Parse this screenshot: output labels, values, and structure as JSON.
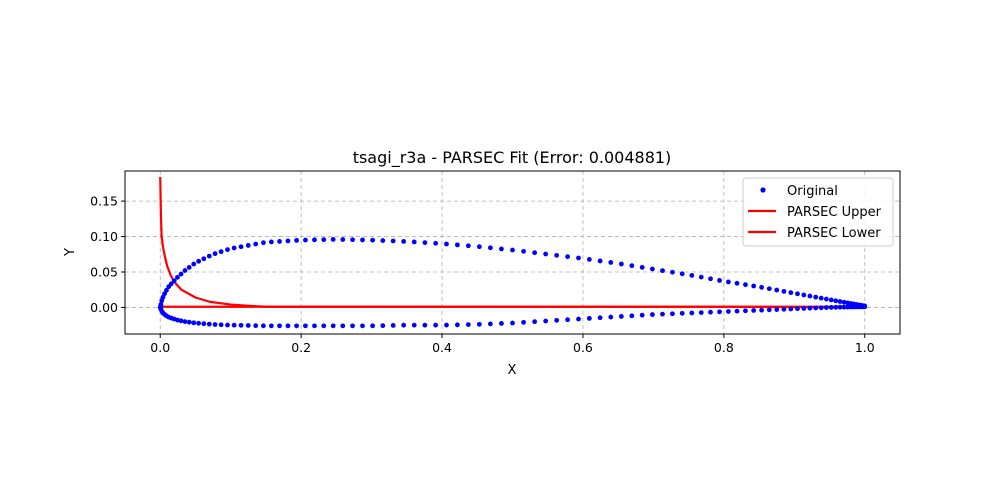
{
  "chart_data": {
    "type": "scatter",
    "title": "tsagi_r3a - PARSEC Fit (Error: 0.004881)",
    "xlabel": "X",
    "ylabel": "Y",
    "xlim": [
      -0.05,
      1.05
    ],
    "ylim": [
      -0.0375,
      0.1925
    ],
    "xticks": [
      0.0,
      0.2,
      0.4,
      0.6,
      0.8,
      1.0
    ],
    "xtick_labels": [
      "0.0",
      "0.2",
      "0.4",
      "0.6",
      "0.8",
      "1.0"
    ],
    "yticks": [
      0.0,
      0.05,
      0.1,
      0.15
    ],
    "ytick_labels": [
      "0.00",
      "0.05",
      "0.10",
      "0.15"
    ],
    "grid": true,
    "legend_position": "top-right",
    "series": [
      {
        "name": "Original",
        "kind": "scatter",
        "color": "#0000ff",
        "upper": {
          "x": [
            1.0,
            0.95,
            0.9,
            0.85,
            0.8,
            0.75,
            0.7,
            0.65,
            0.6,
            0.55,
            0.5,
            0.45,
            0.4,
            0.35,
            0.3,
            0.25,
            0.2,
            0.15,
            0.1,
            0.075,
            0.05,
            0.035,
            0.025,
            0.0125,
            0.0075,
            0.005,
            0.0025,
            0.0
          ],
          "y": [
            0.002,
            0.011,
            0.02,
            0.029,
            0.037,
            0.046,
            0.054,
            0.062,
            0.069,
            0.075,
            0.081,
            0.086,
            0.09,
            0.093,
            0.095,
            0.096,
            0.095,
            0.092,
            0.083,
            0.075,
            0.063,
            0.052,
            0.043,
            0.03,
            0.022,
            0.017,
            0.011,
            0.0
          ]
        },
        "lower": {
          "x": [
            0.0,
            0.0025,
            0.005,
            0.0075,
            0.0125,
            0.025,
            0.035,
            0.05,
            0.075,
            0.1,
            0.15,
            0.2,
            0.25,
            0.3,
            0.35,
            0.4,
            0.45,
            0.5,
            0.55,
            0.6,
            0.65,
            0.7,
            0.75,
            0.8,
            0.85,
            0.9,
            0.95,
            1.0
          ],
          "y": [
            0.0,
            -0.006,
            -0.009,
            -0.011,
            -0.014,
            -0.018,
            -0.02,
            -0.022,
            -0.024,
            -0.025,
            -0.026,
            -0.026,
            -0.026,
            -0.026,
            -0.025,
            -0.025,
            -0.024,
            -0.022,
            -0.019,
            -0.016,
            -0.013,
            -0.01,
            -0.008,
            -0.006,
            -0.004,
            -0.002,
            0.0,
            0.001
          ]
        }
      },
      {
        "name": "PARSEC Upper",
        "kind": "line",
        "color": "#ff0000",
        "x": [
          0.0,
          0.001,
          0.002,
          0.004,
          0.007,
          0.01,
          0.015,
          0.02,
          0.03,
          0.05,
          0.07,
          0.1,
          0.13,
          0.15,
          0.2,
          0.3,
          0.5,
          0.7,
          0.9,
          1.0
        ],
        "y": [
          0.184,
          0.13,
          0.1,
          0.085,
          0.07,
          0.058,
          0.045,
          0.036,
          0.025,
          0.014,
          0.008,
          0.004,
          0.002,
          0.001,
          0.001,
          0.001,
          0.001,
          0.001,
          0.001,
          0.001
        ]
      },
      {
        "name": "PARSEC Lower",
        "kind": "line",
        "color": "#ff0000",
        "x": [
          0.0,
          0.2,
          0.4,
          0.6,
          0.8,
          1.0
        ],
        "y": [
          0.001,
          0.001,
          0.001,
          0.001,
          0.001,
          0.0
        ]
      }
    ]
  }
}
